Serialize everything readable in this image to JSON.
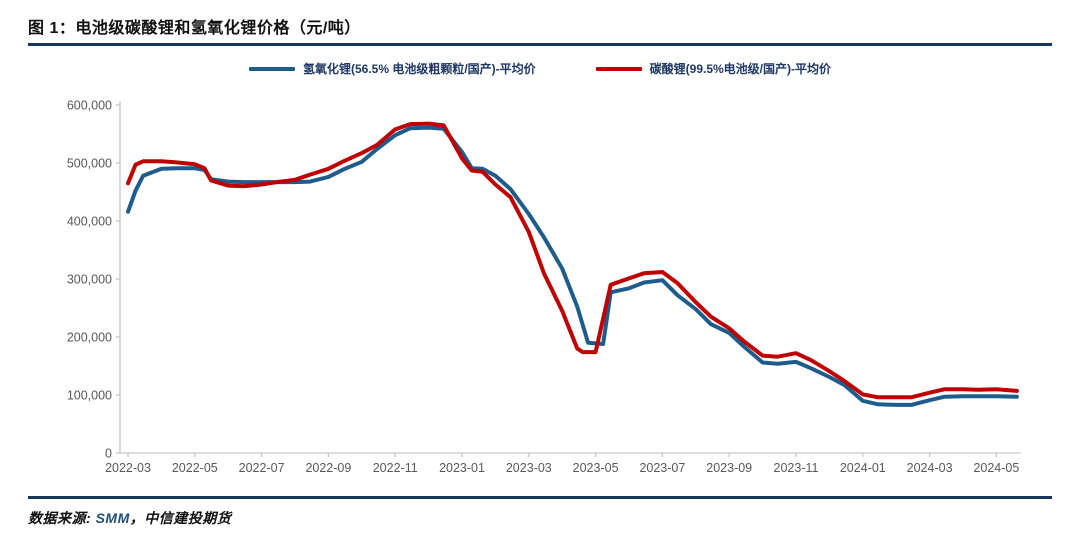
{
  "header": {
    "title": "图 1：电池级碳酸锂和氢氧化锂价格（元/吨）"
  },
  "footer": {
    "prefix": "数据来源: ",
    "source": "SMM",
    "suffix": "，中信建投期货"
  },
  "colors": {
    "rule": "#17375D",
    "axis_line": "#C6C6C6",
    "tick_label": "#595959",
    "legend_text": "#1F3864",
    "source_blue": "#1F4E79"
  },
  "chart_data": {
    "type": "line",
    "title": "电池级碳酸锂和氢氧化锂价格（元/吨）",
    "xlabel": "",
    "ylabel": "",
    "ylim": [
      0,
      600000
    ],
    "grid": false,
    "legend_position": "top-center",
    "y_ticks": [
      0,
      100000,
      200000,
      300000,
      400000,
      500000,
      600000
    ],
    "x_ticks": [
      "2022-03",
      "2022-05",
      "2022-07",
      "2022-09",
      "2022-11",
      "2023-01",
      "2023-03",
      "2023-05",
      "2023-07",
      "2023-09",
      "2023-11",
      "2024-01",
      "2024-03",
      "2024-05"
    ],
    "series": [
      {
        "name": "氢氧化锂(56.5% 电池级粗颗粒/国产)-平均价",
        "color": "#1E5C8B",
        "points": [
          [
            "2022-03-01",
            416000
          ],
          [
            "2022-03-08",
            452000
          ],
          [
            "2022-03-15",
            478000
          ],
          [
            "2022-04-01",
            490000
          ],
          [
            "2022-04-15",
            491000
          ],
          [
            "2022-05-01",
            491000
          ],
          [
            "2022-05-10",
            488000
          ],
          [
            "2022-05-16",
            472000
          ],
          [
            "2022-06-01",
            468000
          ],
          [
            "2022-06-15",
            467000
          ],
          [
            "2022-07-01",
            467000
          ],
          [
            "2022-07-15",
            467000
          ],
          [
            "2022-08-01",
            467000
          ],
          [
            "2022-08-15",
            468000
          ],
          [
            "2022-09-01",
            476000
          ],
          [
            "2022-09-15",
            489000
          ],
          [
            "2022-10-01",
            502000
          ],
          [
            "2022-10-15",
            524000
          ],
          [
            "2022-11-01",
            548000
          ],
          [
            "2022-11-15",
            560000
          ],
          [
            "2022-12-01",
            561000
          ],
          [
            "2022-12-15",
            559000
          ],
          [
            "2023-01-01",
            519000
          ],
          [
            "2023-01-10",
            491000
          ],
          [
            "2023-01-20",
            490000
          ],
          [
            "2023-02-01",
            478000
          ],
          [
            "2023-02-15",
            455000
          ],
          [
            "2023-03-01",
            412000
          ],
          [
            "2023-03-15",
            372000
          ],
          [
            "2023-04-01",
            318000
          ],
          [
            "2023-04-15",
            252000
          ],
          [
            "2023-04-25",
            190000
          ],
          [
            "2023-05-08",
            188000
          ],
          [
            "2023-05-15",
            277000
          ],
          [
            "2023-06-01",
            284000
          ],
          [
            "2023-06-15",
            294000
          ],
          [
            "2023-07-01",
            298000
          ],
          [
            "2023-07-15",
            272000
          ],
          [
            "2023-08-01",
            248000
          ],
          [
            "2023-08-15",
            222000
          ],
          [
            "2023-09-01",
            207000
          ],
          [
            "2023-09-15",
            183000
          ],
          [
            "2023-10-01",
            156000
          ],
          [
            "2023-10-15",
            154000
          ],
          [
            "2023-11-01",
            157000
          ],
          [
            "2023-11-15",
            146000
          ],
          [
            "2023-12-01",
            131000
          ],
          [
            "2023-12-15",
            117000
          ],
          [
            "2024-01-01",
            90000
          ],
          [
            "2024-01-15",
            84000
          ],
          [
            "2024-02-01",
            83000
          ],
          [
            "2024-02-15",
            83000
          ],
          [
            "2024-03-01",
            91000
          ],
          [
            "2024-03-15",
            97000
          ],
          [
            "2024-04-01",
            98000
          ],
          [
            "2024-04-15",
            98000
          ],
          [
            "2024-05-01",
            98000
          ],
          [
            "2024-05-20",
            97000
          ]
        ]
      },
      {
        "name": "碳酸锂(99.5%电池级/国产)-平均价",
        "color": "#C00000",
        "points": [
          [
            "2022-03-01",
            465000
          ],
          [
            "2022-03-08",
            497000
          ],
          [
            "2022-03-15",
            503000
          ],
          [
            "2022-04-01",
            503000
          ],
          [
            "2022-04-15",
            501000
          ],
          [
            "2022-05-01",
            498000
          ],
          [
            "2022-05-10",
            491000
          ],
          [
            "2022-05-16",
            470000
          ],
          [
            "2022-06-01",
            461000
          ],
          [
            "2022-06-15",
            460000
          ],
          [
            "2022-07-01",
            463000
          ],
          [
            "2022-07-15",
            467000
          ],
          [
            "2022-08-01",
            471000
          ],
          [
            "2022-08-15",
            480000
          ],
          [
            "2022-09-01",
            490000
          ],
          [
            "2022-09-15",
            503000
          ],
          [
            "2022-10-01",
            517000
          ],
          [
            "2022-10-15",
            531000
          ],
          [
            "2022-11-01",
            558000
          ],
          [
            "2022-11-15",
            567000
          ],
          [
            "2022-12-01",
            568000
          ],
          [
            "2022-12-15",
            565000
          ],
          [
            "2023-01-01",
            508000
          ],
          [
            "2023-01-10",
            487000
          ],
          [
            "2023-01-20",
            485000
          ],
          [
            "2023-02-01",
            463000
          ],
          [
            "2023-02-15",
            441000
          ],
          [
            "2023-03-01",
            381000
          ],
          [
            "2023-03-15",
            310000
          ],
          [
            "2023-04-01",
            245000
          ],
          [
            "2023-04-15",
            180000
          ],
          [
            "2023-04-20",
            174000
          ],
          [
            "2023-05-01",
            174000
          ],
          [
            "2023-05-15",
            290000
          ],
          [
            "2023-06-01",
            301000
          ],
          [
            "2023-06-15",
            310000
          ],
          [
            "2023-07-01",
            312000
          ],
          [
            "2023-07-15",
            293000
          ],
          [
            "2023-08-01",
            260000
          ],
          [
            "2023-08-15",
            235000
          ],
          [
            "2023-09-01",
            215000
          ],
          [
            "2023-09-15",
            192000
          ],
          [
            "2023-10-01",
            168000
          ],
          [
            "2023-10-15",
            166000
          ],
          [
            "2023-11-01",
            172000
          ],
          [
            "2023-11-15",
            160000
          ],
          [
            "2023-12-01",
            141000
          ],
          [
            "2023-12-15",
            124000
          ],
          [
            "2024-01-01",
            101000
          ],
          [
            "2024-01-15",
            96000
          ],
          [
            "2024-02-01",
            96000
          ],
          [
            "2024-02-15",
            96000
          ],
          [
            "2024-03-01",
            104000
          ],
          [
            "2024-03-15",
            110000
          ],
          [
            "2024-04-01",
            110000
          ],
          [
            "2024-04-15",
            109000
          ],
          [
            "2024-05-01",
            110000
          ],
          [
            "2024-05-20",
            107000
          ]
        ]
      }
    ]
  }
}
